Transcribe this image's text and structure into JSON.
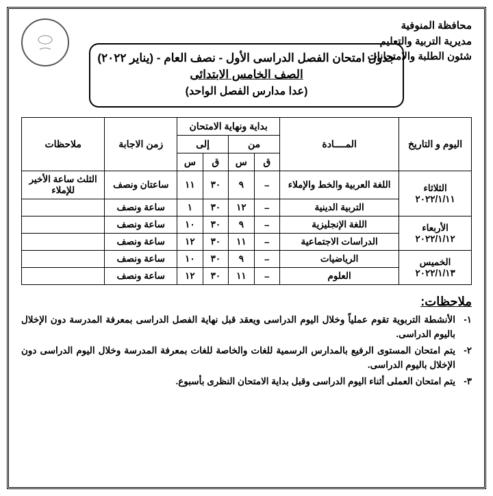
{
  "authority": {
    "line1": "محافظة المنوفية",
    "line2": "مديرية التربية والتعليم",
    "line3": "شئون الطلبة والامتحانات"
  },
  "title": {
    "line1": "جدول امتحان الفصل الدراسى الأول - نصف العام -  (يناير ٢٠٢٢)",
    "line2": "الصف الخامس الابتدائى",
    "line3": "(عدا مدارس الفصل الواحد)"
  },
  "headers": {
    "day": "اليوم و التاريخ",
    "subject": "المــــادة",
    "start_end": "بداية ونهاية الامتحان",
    "from": "من",
    "to": "إلى",
    "q": "ق",
    "s": "س",
    "duration": "زمن الاجابة",
    "notes": "ملاحظات"
  },
  "rows": [
    {
      "day": "الثلاثاء ٢٠٢٢/١/١١",
      "subjects": [
        {
          "name": "اللغة العربية والخط والإملاء",
          "from_q": "–",
          "from_s": "٩",
          "to_q": "٣٠",
          "to_s": "١١",
          "duration": "ساعتان ونصف",
          "note": "الثلث ساعة الأخير للإملاء"
        },
        {
          "name": "التربية الدينية",
          "from_q": "–",
          "from_s": "١٢",
          "to_q": "٣٠",
          "to_s": "١",
          "duration": "ساعة ونصف",
          "note": ""
        }
      ]
    },
    {
      "day": "الأربعاء ٢٠٢٢/١/١٢",
      "subjects": [
        {
          "name": "اللغة الإنجليزية",
          "from_q": "–",
          "from_s": "٩",
          "to_q": "٣٠",
          "to_s": "١٠",
          "duration": "ساعة ونصف",
          "note": ""
        },
        {
          "name": "الدراسات الاجتماعية",
          "from_q": "–",
          "from_s": "١١",
          "to_q": "٣٠",
          "to_s": "١٢",
          "duration": "ساعة ونصف",
          "note": ""
        }
      ]
    },
    {
      "day": "الخميس ٢٠٢٢/١/١٣",
      "subjects": [
        {
          "name": "الرياضيات",
          "from_q": "–",
          "from_s": "٩",
          "to_q": "٣٠",
          "to_s": "١٠",
          "duration": "ساعة ونصف",
          "note": ""
        },
        {
          "name": "العلوم",
          "from_q": "–",
          "from_s": "١١",
          "to_q": "٣٠",
          "to_s": "١٢",
          "duration": "ساعة ونصف",
          "note": ""
        }
      ]
    }
  ],
  "notes_title": "ملاحظات:",
  "notes": [
    "الأنشطة التربوية تقوم عملياً وخلال اليوم الدراسى ويعقد قبل نهاية الفصل الدراسى بمعرفة المدرسة دون الإخلال باليوم الدراسى.",
    "يتم امتحان المستوى الرفيع بالمدارس الرسمية للغات والخاصة للغات بمعرفة المدرسة وخلال اليوم الدراسى دون الإخلال باليوم الدراسى.",
    "يتم امتحان العملى أثناء اليوم الدراسى وقبل بداية الامتحان النظرى بأسبوع."
  ]
}
